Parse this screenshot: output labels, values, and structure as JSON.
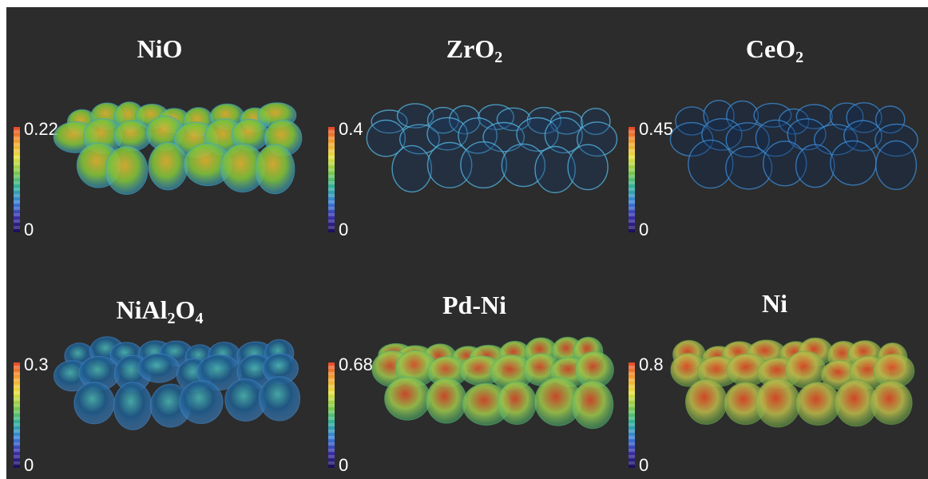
{
  "panels": [
    {
      "title_base": "NiO",
      "title_sub": "",
      "title_tail": "",
      "max": "0.22",
      "min": "0",
      "tone": "#7fc23a",
      "accent": "#e3b431",
      "rim": "#3aa3c9"
    },
    {
      "title_base": "ZrO",
      "title_sub": "2",
      "title_tail": "",
      "max": "0.4",
      "min": "0",
      "tone": "#173a66",
      "accent": "#3c9bcf",
      "rim": "#56b9e6"
    },
    {
      "title_base": "CeO",
      "title_sub": "2",
      "title_tail": "",
      "max": "0.45",
      "min": "0",
      "tone": "#0f2a55",
      "accent": "#2b74c3",
      "rim": "#3d8fd9"
    },
    {
      "title_base": "NiAl",
      "title_sub": "2",
      "title_tail": "O",
      "title_sub2": "4",
      "max": "0.3",
      "min": "0",
      "tone": "#1e5a8a",
      "accent": "#4ab3b0",
      "rim": "#3e86c9"
    },
    {
      "title_base": "Pd-Ni",
      "title_sub": "",
      "title_tail": "",
      "max": "0.68",
      "min": "0",
      "tone": "#9bc34a",
      "accent": "#d84a2a",
      "rim": "#4fb06e"
    },
    {
      "title_base": "Ni",
      "title_sub": "",
      "title_tail": "",
      "max": "0.8",
      "min": "0",
      "tone": "#b9b74a",
      "accent": "#e24a26",
      "rim": "#6ba64a"
    }
  ],
  "colors": {
    "background": "#2c2c2c",
    "colormap": [
      "#e8462a",
      "#f0a030",
      "#e8e040",
      "#7cc84a",
      "#2fb09a",
      "#3a7fd8",
      "#3a2fa8",
      "#1a0c58"
    ]
  }
}
